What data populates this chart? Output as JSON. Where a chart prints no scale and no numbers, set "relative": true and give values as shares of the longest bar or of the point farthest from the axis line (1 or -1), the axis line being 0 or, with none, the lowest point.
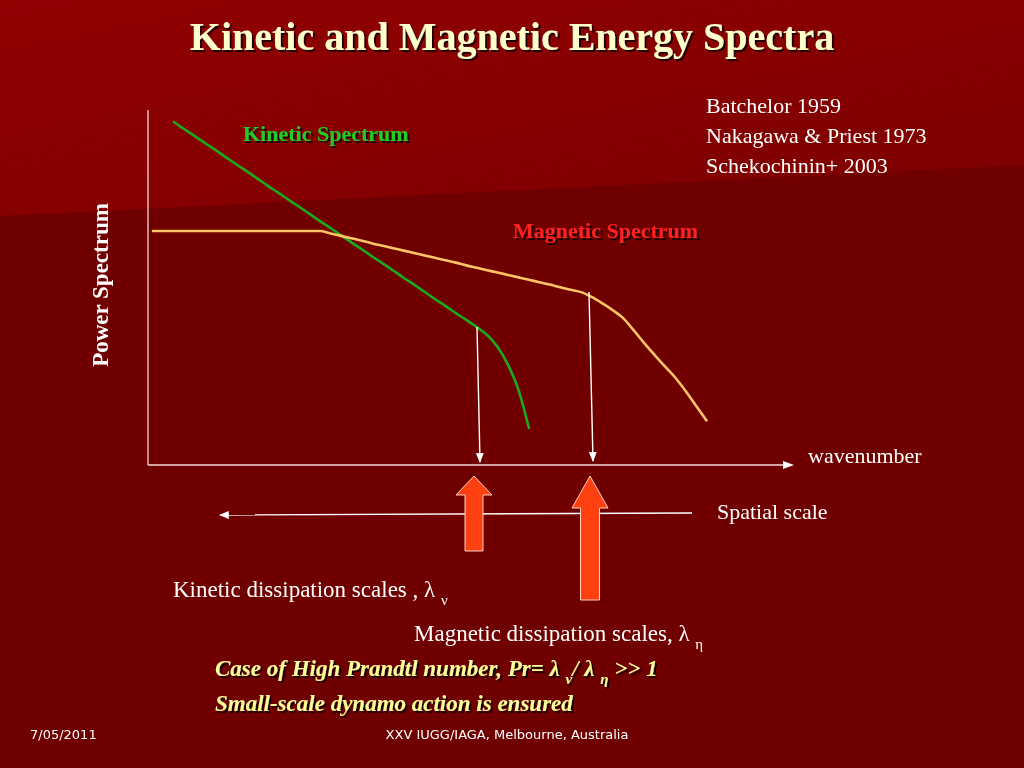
{
  "chart_data": {
    "type": "line",
    "title": "Kinetic and Magnetic Energy Spectra",
    "xlabel": "wavenumber",
    "ylabel": "Power Spectrum",
    "relative": true,
    "categories": [
      null,
      null,
      null,
      null,
      null,
      null,
      null,
      null,
      null,
      null,
      null,
      null,
      null,
      null,
      null,
      null,
      null,
      null,
      null,
      null,
      null,
      null,
      null,
      null,
      null,
      null,
      null,
      null,
      null,
      null,
      null,
      null,
      null,
      null,
      null,
      null,
      null,
      null,
      null,
      null,
      null,
      null,
      null,
      null,
      null,
      null,
      null,
      null,
      null,
      null,
      null,
      null,
      null,
      null,
      null,
      null,
      null,
      null,
      null,
      null,
      null,
      null
    ],
    "series": [
      {
        "name": "Kinetic Spectrum",
        "color": "#1aaa1a",
        "values": [
          null,
          null,
          1,
          0.979,
          0.959,
          0.938,
          0.918,
          0.897,
          0.876,
          0.856,
          0.835,
          0.814,
          0.794,
          0.773,
          0.753,
          0.732,
          0.711,
          0.691,
          0.67,
          0.649,
          0.629,
          0.608,
          0.588,
          0.567,
          0.546,
          0.526,
          0.505,
          0.484,
          0.464,
          0.443,
          0.423,
          0.402,
          0.379,
          0.344,
          0.292,
          0.219,
          0.108,
          null,
          null,
          null,
          null,
          null,
          null,
          null,
          null,
          null,
          null,
          null,
          null,
          null,
          null,
          null,
          null,
          null,
          null,
          null,
          null,
          null,
          null,
          null,
          null,
          null
        ]
      },
      {
        "name": "Magnetic Spectrum",
        "color": "#ffc466",
        "values": [
          0.682,
          0.682,
          0.682,
          0.682,
          0.682,
          0.682,
          0.682,
          0.682,
          0.682,
          0.682,
          0.682,
          0.682,
          0.682,
          0.682,
          0.682,
          0.682,
          0.682,
          0.675,
          0.668,
          0.661,
          0.654,
          0.646,
          0.639,
          0.632,
          0.625,
          0.618,
          0.611,
          0.604,
          0.597,
          0.59,
          0.582,
          0.575,
          0.568,
          0.561,
          0.554,
          0.547,
          0.54,
          0.533,
          0.526,
          0.518,
          0.511,
          0.504,
          0.49,
          0.472,
          0.452,
          0.429,
          0.394,
          0.357,
          0.322,
          0.288,
          0.255,
          0.216,
          0.173,
          0.13,
          null,
          null,
          null,
          null,
          null,
          null,
          null,
          null
        ]
      }
    ],
    "annotations": [
      "Batchelor 1959",
      "Nakagawa & Priest 1973",
      "Schekochinin+ 2003",
      "Spatial scale",
      "Kinetic dissipation scales , λ $_{ν}$",
      "Magnetic dissipation scales, λ $_{η}$",
      "Case of High Prandtl number, Pr= λ $_{ν}$/ λ $_{η}$ >> 1",
      "Small-scale dynamo action is ensured",
      "7/05/2011",
      "XXV IUGG/IAGA, Melbourne, Australia"
    ]
  }
}
